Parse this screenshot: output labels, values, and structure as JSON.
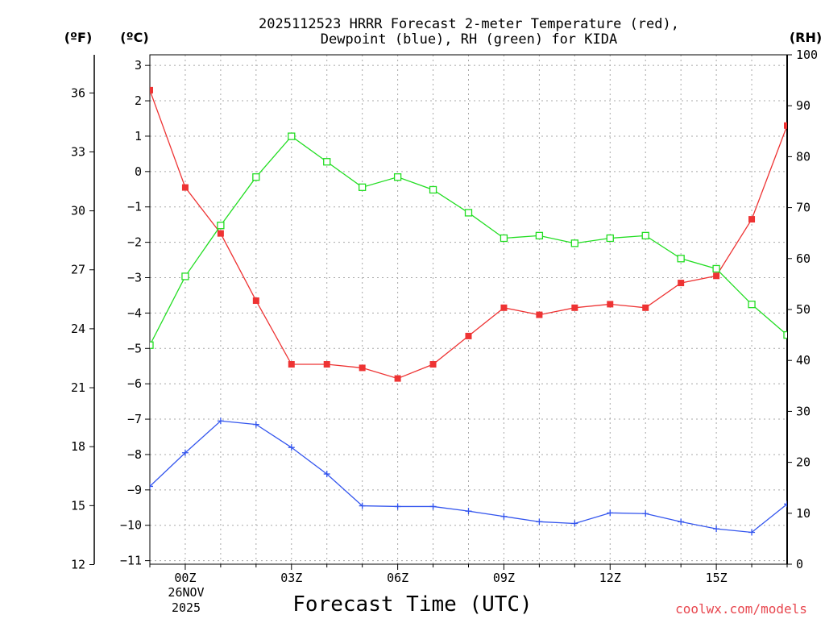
{
  "chart_data": {
    "type": "line",
    "title_line1": "2025112523 HRRR Forecast 2-meter Temperature (red),",
    "title_line2": "Dewpoint (blue), RH (green) for KIDA",
    "unit_f": "(ºF)",
    "unit_c": "(ºC)",
    "unit_rh": "(RH)",
    "xlabel": "Forecast Time (UTC)",
    "credit": "coolwx.com/models",
    "x_hours_range": [
      -1,
      17
    ],
    "x_ticks": [
      {
        "h": 0,
        "label": "00Z"
      },
      {
        "h": 3,
        "label": "03Z"
      },
      {
        "h": 6,
        "label": "06Z"
      },
      {
        "h": 9,
        "label": "09Z"
      },
      {
        "h": 12,
        "label": "12Z"
      },
      {
        "h": 15,
        "label": "15Z"
      }
    ],
    "date_line1": "26NOV",
    "date_line2": "2025",
    "y_c_range": [
      -11.1,
      3.3
    ],
    "y_c_ticks": [
      "3",
      "2",
      "1",
      "0",
      "−1",
      "−2",
      "−3",
      "−4",
      "−5",
      "−6",
      "−7",
      "−8",
      "−9",
      "−10",
      "−11"
    ],
    "y_f_ticks": [
      "36",
      "33",
      "30",
      "27",
      "24",
      "21",
      "18",
      "15",
      "12"
    ],
    "y_rh_range": [
      0,
      100
    ],
    "y_rh_ticks": [
      "100",
      "90",
      "80",
      "70",
      "60",
      "50",
      "40",
      "30",
      "20",
      "10",
      "0"
    ],
    "series": [
      {
        "name": "Temperature",
        "color": "#ee3333",
        "marker": "square-filled",
        "hours": [
          -1,
          0,
          1,
          2,
          3,
          4,
          5,
          6,
          7,
          8,
          9,
          10,
          11,
          12,
          13,
          14,
          15,
          16,
          17
        ],
        "values_c": [
          2.3,
          -0.45,
          -1.75,
          -3.65,
          -5.45,
          -5.45,
          -5.55,
          -5.85,
          -5.45,
          -4.65,
          -3.85,
          -4.05,
          -3.85,
          -3.75,
          -3.85,
          -3.15,
          -2.95,
          -1.35,
          1.3
        ]
      },
      {
        "name": "Dewpoint",
        "color": "#3355ee",
        "marker": "plus",
        "hours": [
          -1,
          0,
          1,
          2,
          3,
          4,
          5,
          6,
          7,
          8,
          9,
          10,
          11,
          12,
          13,
          14,
          15,
          16,
          17
        ],
        "values_c": [
          -8.9,
          -7.95,
          -7.05,
          -7.15,
          -7.8,
          -8.55,
          -9.45,
          -9.47,
          -9.47,
          -9.6,
          -9.75,
          -9.9,
          -9.95,
          -9.65,
          -9.67,
          -9.9,
          -10.1,
          -10.2,
          -9.4
        ]
      },
      {
        "name": "RH",
        "color": "#22dd22",
        "marker": "square-open",
        "hours": [
          -1,
          0,
          1,
          2,
          3,
          4,
          5,
          6,
          7,
          8,
          9,
          10,
          11,
          12,
          13,
          14,
          15,
          16,
          17
        ],
        "values_rh": [
          43,
          56.5,
          66.5,
          76,
          84,
          79,
          74,
          76,
          73.5,
          69,
          64,
          64.5,
          63,
          64,
          64.5,
          60,
          58,
          51,
          45
        ]
      }
    ]
  }
}
